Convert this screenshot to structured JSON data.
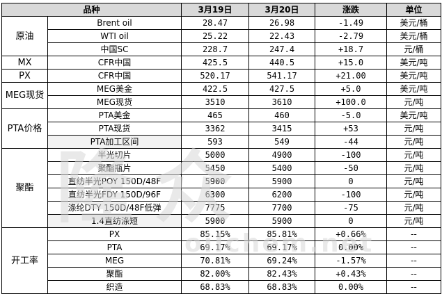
{
  "headers": [
    "品种",
    "3月19日",
    "3月20日",
    "涨跌",
    "单位"
  ],
  "groups": [
    {
      "name": "原油",
      "rows": [
        [
          "Brent oil",
          "28.47",
          "26.98",
          "-1.49",
          "美元/桶"
        ],
        [
          "WTI oil",
          "25.22",
          "22.43",
          "-2.79",
          "美元/桶"
        ],
        [
          "中国SC",
          "228.7",
          "247.4",
          "+18.7",
          "元/桶"
        ]
      ]
    },
    {
      "name": "MX",
      "rows": [
        [
          "CFR中国",
          "425.5",
          "440.5",
          "+15.0",
          "美元/吨"
        ]
      ]
    },
    {
      "name": "PX",
      "rows": [
        [
          "CFR中国",
          "520.17",
          "541.17",
          "+21.00",
          "美元/吨"
        ]
      ]
    },
    {
      "name": "MEG现货",
      "rows": [
        [
          "MEG美金",
          "422.5",
          "427.5",
          "+5.0",
          "美元/吨"
        ],
        [
          "MEG现货",
          "3510",
          "3610",
          "+100.0",
          "元/吨"
        ]
      ]
    },
    {
      "name": "PTA价格",
      "rows": [
        [
          "PTA美金",
          "465",
          "460",
          "-5.0",
          "美元/吨"
        ],
        [
          "PTA现货",
          "3362",
          "3415",
          "+53",
          "元/吨"
        ],
        [
          "PTA加工区间",
          "593",
          "549",
          "-44",
          "元/吨"
        ]
      ]
    },
    {
      "name": "聚酯",
      "rows": [
        [
          "半光切片",
          "5000",
          "4900",
          "-100",
          "元/吨"
        ],
        [
          "聚酯瓶片",
          "5450",
          "5400",
          "-50",
          "元/吨"
        ],
        [
          "直纺半光POY 150D/48F",
          "5900",
          "5900",
          "0",
          "元/吨"
        ],
        [
          "直纺半光FDY 150D/96F",
          "6300",
          "6200",
          "-100",
          "元/吨"
        ],
        [
          "涤纶DTY 150D/48F低弹",
          "7775",
          "7700",
          "-75",
          "元/吨"
        ],
        [
          "1.4直纺涤短",
          "5900",
          "5900",
          "0",
          "元/吨"
        ]
      ]
    },
    {
      "name": "开工率",
      "rows": [
        [
          "PX",
          "85.15%",
          "85.81%",
          "+0.66%",
          "--"
        ],
        [
          "PTA",
          "69.17%",
          "69.17%",
          "0.00%",
          "--"
        ],
        [
          "MEG",
          "70.81%",
          "69.24%",
          "-1.57%",
          "--"
        ],
        [
          "聚酯",
          "82.00%",
          "82.43%",
          "+0.43%",
          "--"
        ],
        [
          "织造",
          "68.83%",
          "68.83%",
          "0.00%",
          "--"
        ]
      ]
    }
  ],
  "watermark": {
    "main": "隆众",
    "site": "oilchem.net"
  }
}
